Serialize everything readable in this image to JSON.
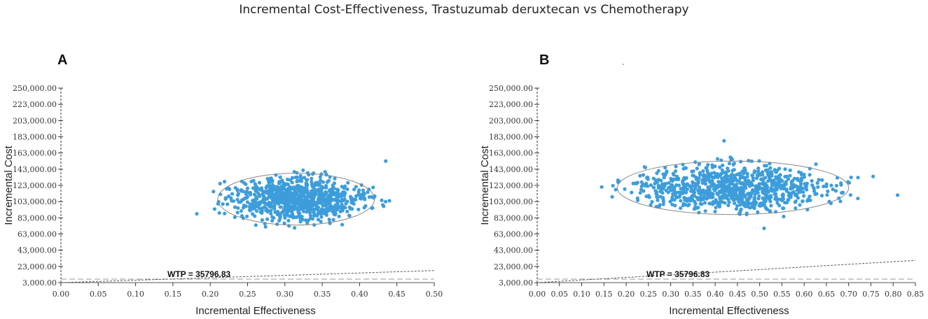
{
  "title": "Incremental Cost-Effectiveness, Trastuzumab deruxtecan vs Chemotherapy",
  "chart_data": [
    {
      "type": "scatter",
      "panel": "A",
      "xlabel": "Incremental Effectiveness",
      "ylabel": "Incremental Cost",
      "xlim": [
        0,
        0.5
      ],
      "x_ticks": [
        "0.00",
        "0.05",
        "0.10",
        "0.15",
        "0.20",
        "0.25",
        "0.30",
        "0.35",
        "0.40",
        "0.45",
        "0.50"
      ],
      "y_ticks": [
        3000,
        23000,
        43000,
        63000,
        83000,
        103000,
        123000,
        143000,
        163000,
        183000,
        203000,
        223000,
        250000
      ],
      "y_tick_labels": [
        "3,000.00",
        "23,000.00",
        "43,000.00",
        "63,000.00",
        "83,000.00",
        "103,000.00",
        "123,000.00",
        "143,000.00",
        "163,000.00",
        "183,000.00",
        "203,000.00",
        "223,000.00",
        "250,000.00"
      ],
      "point_color": "#3d9ddb",
      "cloud": {
        "x_mean": 0.315,
        "x_sd": 0.045,
        "y_mean": 106000,
        "y_sd": 14000,
        "n": 900
      },
      "ellipse": {
        "cx": 0.315,
        "cy": 106000,
        "rx": 0.105,
        "ry": 32000
      },
      "outliers": [
        [
          0.435,
          153000
        ],
        [
          0.182,
          88000
        ],
        [
          0.44,
          104000
        ]
      ],
      "wtp_label": "WTP = 35796.83",
      "wtp_slope": 35796.83
    },
    {
      "type": "scatter",
      "panel": "B",
      "xlabel": "Incremental Effectiveness",
      "ylabel": "Incremental Cost",
      "xlim": [
        0,
        0.85
      ],
      "x_ticks": [
        "0.00",
        "0.05",
        "0.10",
        "0.15",
        "0.20",
        "0.25",
        "0.30",
        "0.35",
        "0.40",
        "0.45",
        "0.50",
        "0.55",
        "0.60",
        "0.65",
        "0.70",
        "0.75",
        "0.80",
        "0.85"
      ],
      "y_ticks": [
        3000,
        23000,
        43000,
        63000,
        83000,
        103000,
        123000,
        143000,
        163000,
        183000,
        203000,
        223000,
        250000
      ],
      "y_tick_labels": [
        "3,000.00",
        "23,000.00",
        "43,000.00",
        "63,000.00",
        "83,000.00",
        "103,000.00",
        "123,000.00",
        "143,000.00",
        "163,000.00",
        "183,000.00",
        "203,000.00",
        "223,000.00",
        "250,000.00"
      ],
      "point_color": "#3d9ddb",
      "cloud": {
        "x_mean": 0.44,
        "x_sd": 0.11,
        "y_mean": 120000,
        "y_sd": 14000,
        "n": 900
      },
      "ellipse": {
        "cx": 0.44,
        "cy": 120000,
        "rx": 0.26,
        "ry": 33000
      },
      "outliers": [
        [
          0.81,
          111000
        ],
        [
          0.755,
          134000
        ],
        [
          0.145,
          121000
        ],
        [
          0.42,
          178000
        ],
        [
          0.51,
          70000
        ]
      ],
      "wtp_label": "WTP = 35796.83",
      "wtp_slope": 35796.83
    }
  ]
}
